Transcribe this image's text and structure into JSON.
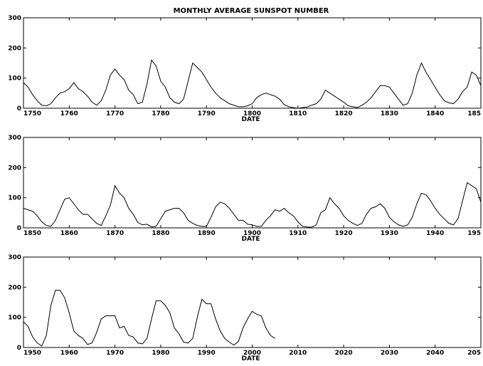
{
  "title": "MONTHLY AVERAGE SUNSPOT NUMBER",
  "colors": {
    "line": "#000000",
    "axes": "#000000",
    "background": "#ffffff"
  },
  "chart_data": [
    {
      "type": "line",
      "title": "MONTHLY AVERAGE SUNSPOT NUMBER",
      "xlabel": "DATE",
      "ylabel": "",
      "xlim": [
        1750,
        1850
      ],
      "ylim": [
        0,
        300
      ],
      "x_ticks": [
        "1750",
        "1760",
        "1770",
        "1780",
        "1790",
        "1800",
        "1810",
        "1820",
        "1830",
        "1840",
        "185"
      ],
      "y_ticks": [
        "0",
        "100",
        "200",
        "300"
      ],
      "grid": false,
      "series": [
        {
          "x": [
            1750.0,
            1751.0,
            1752.0,
            1753.0,
            1754.0,
            1755.0,
            1756.0,
            1757.0,
            1758.0,
            1759.0,
            1760.0,
            1761.0,
            1762.0,
            1763.0,
            1764.0,
            1765.0,
            1766.0,
            1767.0,
            1768.0,
            1769.0,
            1770.0,
            1771.0,
            1772.0,
            1773.0,
            1774.0,
            1775.0,
            1776.0,
            1777.0,
            1778.0,
            1779.0,
            1780.0,
            1781.0,
            1782.0,
            1783.0,
            1784.0,
            1785.0,
            1786.0,
            1787.0,
            1788.0,
            1789.0,
            1790.0,
            1791.0,
            1792.0,
            1793.0,
            1794.0,
            1795.0,
            1796.0,
            1797.0,
            1798.0,
            1799.0,
            1800.0,
            1801.0,
            1802.0,
            1803.0,
            1804.0,
            1805.0,
            1806.0,
            1807.0,
            1808.0,
            1809.0,
            1810.0,
            1811.0,
            1812.0,
            1813.0,
            1814.0,
            1815.0,
            1816.0,
            1817.0,
            1818.0,
            1819.0,
            1820.0,
            1821.0,
            1822.0,
            1823.0,
            1824.0,
            1825.0,
            1826.0,
            1827.0,
            1828.0,
            1829.0,
            1830.0,
            1831.0,
            1832.0,
            1833.0,
            1834.0,
            1835.0,
            1836.0,
            1837.0,
            1838.0,
            1839.0,
            1840.0,
            1841.0,
            1842.0,
            1843.0,
            1844.0,
            1845.0,
            1846.0,
            1847.0,
            1848.0,
            1849.0,
            1850.0
          ],
          "y": [
            85,
            70,
            45,
            25,
            10,
            8,
            15,
            35,
            50,
            55,
            65,
            85,
            65,
            55,
            40,
            20,
            10,
            25,
            60,
            110,
            130,
            110,
            95,
            60,
            45,
            15,
            20,
            80,
            160,
            140,
            90,
            70,
            35,
            20,
            15,
            30,
            90,
            150,
            135,
            120,
            95,
            70,
            50,
            35,
            25,
            15,
            10,
            5,
            5,
            8,
            15,
            35,
            45,
            50,
            45,
            40,
            30,
            12,
            5,
            2,
            0,
            2,
            4,
            10,
            15,
            30,
            60,
            50,
            40,
            30,
            20,
            8,
            5,
            2,
            10,
            20,
            35,
            55,
            75,
            75,
            70,
            50,
            30,
            10,
            15,
            50,
            110,
            150,
            120,
            95,
            70,
            45,
            25,
            18,
            15,
            30,
            55,
            70,
            120,
            110,
            75
          ]
        }
      ]
    },
    {
      "type": "line",
      "title": "",
      "xlabel": "DATE",
      "ylabel": "",
      "xlim": [
        1850,
        1950
      ],
      "ylim": [
        0,
        300
      ],
      "x_ticks": [
        "1850",
        "1860",
        "1870",
        "1880",
        "1890",
        "1900",
        "1910",
        "1920",
        "1930",
        "1940",
        "195"
      ],
      "y_ticks": [
        "0",
        "100",
        "200",
        "300"
      ],
      "grid": false,
      "series": [
        {
          "x": [
            1850.0,
            1851.0,
            1852.0,
            1853.0,
            1854.0,
            1855.0,
            1856.0,
            1857.0,
            1858.0,
            1859.0,
            1860.0,
            1861.0,
            1862.0,
            1863.0,
            1864.0,
            1865.0,
            1866.0,
            1867.0,
            1868.0,
            1869.0,
            1870.0,
            1871.0,
            1872.0,
            1873.0,
            1874.0,
            1875.0,
            1876.0,
            1877.0,
            1878.0,
            1879.0,
            1880.0,
            1881.0,
            1882.0,
            1883.0,
            1884.0,
            1885.0,
            1886.0,
            1887.0,
            1888.0,
            1889.0,
            1890.0,
            1891.0,
            1892.0,
            1893.0,
            1894.0,
            1895.0,
            1896.0,
            1897.0,
            1898.0,
            1899.0,
            1900.0,
            1901.0,
            1902.0,
            1903.0,
            1904.0,
            1905.0,
            1906.0,
            1907.0,
            1908.0,
            1909.0,
            1910.0,
            1911.0,
            1912.0,
            1913.0,
            1914.0,
            1915.0,
            1916.0,
            1917.0,
            1918.0,
            1919.0,
            1920.0,
            1921.0,
            1922.0,
            1923.0,
            1924.0,
            1925.0,
            1926.0,
            1927.0,
            1928.0,
            1929.0,
            1930.0,
            1931.0,
            1932.0,
            1933.0,
            1934.0,
            1935.0,
            1936.0,
            1937.0,
            1938.0,
            1939.0,
            1940.0,
            1941.0,
            1942.0,
            1943.0,
            1944.0,
            1945.0,
            1946.0,
            1947.0,
            1948.0,
            1949.0,
            1950.0
          ],
          "y": [
            65,
            60,
            55,
            40,
            20,
            8,
            5,
            25,
            60,
            95,
            100,
            80,
            60,
            45,
            45,
            30,
            15,
            8,
            40,
            75,
            140,
            115,
            100,
            65,
            45,
            18,
            10,
            12,
            3,
            5,
            30,
            55,
            60,
            65,
            65,
            50,
            25,
            15,
            8,
            5,
            5,
            35,
            70,
            85,
            80,
            65,
            45,
            25,
            25,
            12,
            10,
            5,
            5,
            25,
            40,
            60,
            55,
            65,
            50,
            40,
            20,
            5,
            3,
            2,
            10,
            50,
            60,
            100,
            80,
            65,
            40,
            25,
            15,
            8,
            15,
            45,
            65,
            70,
            80,
            65,
            35,
            20,
            10,
            5,
            10,
            35,
            80,
            115,
            110,
            90,
            65,
            45,
            30,
            15,
            10,
            30,
            90,
            150,
            140,
            130,
            85
          ]
        }
      ]
    },
    {
      "type": "line",
      "title": "",
      "xlabel": "DATE",
      "ylabel": "",
      "xlim": [
        1950,
        2050
      ],
      "ylim": [
        0,
        300
      ],
      "x_ticks": [
        "1950",
        "1960",
        "1970",
        "1980",
        "1990",
        "2000",
        "2010",
        "2020",
        "2030",
        "2040",
        "205"
      ],
      "y_ticks": [
        "0",
        "100",
        "200",
        "300"
      ],
      "grid": false,
      "series": [
        {
          "x": [
            1950.0,
            1951.0,
            1952.0,
            1953.0,
            1954.0,
            1955.0,
            1956.0,
            1957.0,
            1958.0,
            1959.0,
            1960.0,
            1961.0,
            1962.0,
            1963.0,
            1964.0,
            1965.0,
            1966.0,
            1967.0,
            1968.0,
            1969.0,
            1970.0,
            1971.0,
            1972.0,
            1973.0,
            1974.0,
            1975.0,
            1976.0,
            1977.0,
            1978.0,
            1979.0,
            1980.0,
            1981.0,
            1982.0,
            1983.0,
            1984.0,
            1985.0,
            1986.0,
            1987.0,
            1988.0,
            1989.0,
            1990.0,
            1991.0,
            1992.0,
            1993.0,
            1994.0,
            1995.0,
            1996.0,
            1997.0,
            1998.0,
            1999.0,
            2000.0,
            2001.0,
            2002.0,
            2003.0,
            2004.0,
            2005.0
          ],
          "y": [
            85,
            70,
            35,
            15,
            5,
            40,
            140,
            190,
            190,
            165,
            115,
            55,
            40,
            30,
            10,
            15,
            50,
            95,
            105,
            105,
            105,
            65,
            70,
            40,
            35,
            15,
            12,
            30,
            95,
            155,
            155,
            140,
            115,
            65,
            45,
            18,
            15,
            30,
            100,
            160,
            145,
            145,
            95,
            55,
            30,
            18,
            8,
            20,
            65,
            95,
            120,
            110,
            105,
            65,
            40,
            30
          ]
        }
      ]
    }
  ]
}
